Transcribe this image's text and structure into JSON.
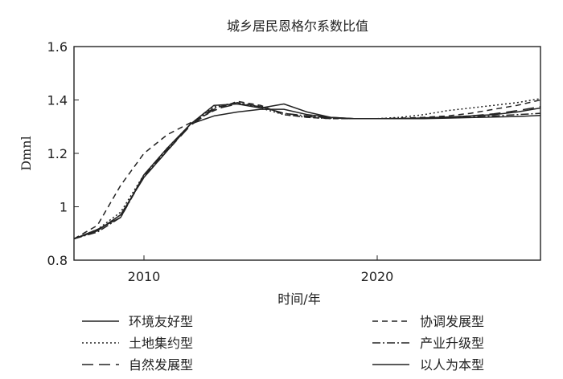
{
  "chart_data": {
    "type": "line",
    "title": "城乡居民恩格尔系数比值",
    "xlabel": "时间/年",
    "ylabel": "Dmnl",
    "xlim": [
      2007,
      2027
    ],
    "ylim": [
      0.8,
      1.6
    ],
    "xticks": [
      {
        "value": 2010,
        "label": "2010"
      },
      {
        "value": 2020,
        "label": "2020"
      }
    ],
    "yticks": [
      {
        "value": 0.8,
        "label": "0.8"
      },
      {
        "value": 1.0,
        "label": "1"
      },
      {
        "value": 1.2,
        "label": "1.2"
      },
      {
        "value": 1.4,
        "label": "1.4"
      },
      {
        "value": 1.6,
        "label": "1.6"
      }
    ],
    "grid": false,
    "legend_position": "bottom",
    "series": [
      {
        "name": "环境友好型",
        "dash": "solid",
        "x": [
          2007,
          2008,
          2009,
          2010,
          2011,
          2012,
          2013,
          2014,
          2015,
          2016,
          2017,
          2018,
          2019,
          2020,
          2021,
          2022,
          2023,
          2024,
          2025,
          2026,
          2027
        ],
        "y": [
          0.88,
          0.91,
          0.97,
          1.11,
          1.21,
          1.31,
          1.34,
          1.355,
          1.365,
          1.365,
          1.345,
          1.335,
          1.33,
          1.33,
          1.33,
          1.333,
          1.336,
          1.34,
          1.345,
          1.355,
          1.37
        ]
      },
      {
        "name": "协调发展型",
        "dash": "dash",
        "x": [
          2007,
          2008,
          2009,
          2010,
          2011,
          2012,
          2013,
          2014,
          2015,
          2016,
          2017,
          2018,
          2019,
          2020,
          2021,
          2022,
          2023,
          2024,
          2025,
          2026,
          2027
        ],
        "y": [
          0.88,
          0.93,
          1.08,
          1.2,
          1.27,
          1.315,
          1.36,
          1.395,
          1.38,
          1.345,
          1.335,
          1.33,
          1.33,
          1.33,
          1.332,
          1.335,
          1.34,
          1.35,
          1.365,
          1.38,
          1.4
        ]
      },
      {
        "name": "土地集约型",
        "dash": "dot",
        "x": [
          2007,
          2008,
          2009,
          2010,
          2011,
          2012,
          2013,
          2014,
          2015,
          2016,
          2017,
          2018,
          2019,
          2020,
          2021,
          2022,
          2023,
          2024,
          2025,
          2026,
          2027
        ],
        "y": [
          0.88,
          0.915,
          0.98,
          1.12,
          1.22,
          1.31,
          1.375,
          1.39,
          1.37,
          1.345,
          1.335,
          1.33,
          1.33,
          1.33,
          1.335,
          1.345,
          1.36,
          1.37,
          1.38,
          1.39,
          1.405
        ]
      },
      {
        "name": "产业升级型",
        "dash": "dashdot",
        "x": [
          2007,
          2008,
          2009,
          2010,
          2011,
          2012,
          2013,
          2014,
          2015,
          2016,
          2017,
          2018,
          2019,
          2020,
          2021,
          2022,
          2023,
          2024,
          2025,
          2026,
          2027
        ],
        "y": [
          0.88,
          0.905,
          0.96,
          1.115,
          1.215,
          1.31,
          1.37,
          1.39,
          1.375,
          1.35,
          1.34,
          1.333,
          1.33,
          1.33,
          1.33,
          1.332,
          1.334,
          1.336,
          1.34,
          1.345,
          1.35
        ]
      },
      {
        "name": "自然发展型",
        "dash": "longdash",
        "x": [
          2007,
          2008,
          2009,
          2010,
          2011,
          2012,
          2013,
          2014,
          2015,
          2016,
          2017,
          2018,
          2019,
          2020,
          2021,
          2022,
          2023,
          2024,
          2025,
          2026,
          2027
        ],
        "y": [
          0.88,
          0.91,
          0.97,
          1.11,
          1.21,
          1.305,
          1.365,
          1.385,
          1.375,
          1.35,
          1.338,
          1.332,
          1.33,
          1.33,
          1.33,
          1.332,
          1.335,
          1.34,
          1.348,
          1.36,
          1.375
        ]
      },
      {
        "name": "以人为本型",
        "dash": "solid",
        "x": [
          2007,
          2008,
          2009,
          2010,
          2011,
          2012,
          2013,
          2014,
          2015,
          2016,
          2017,
          2018,
          2019,
          2020,
          2021,
          2022,
          2023,
          2024,
          2025,
          2026,
          2027
        ],
        "y": [
          0.88,
          0.915,
          0.96,
          1.12,
          1.22,
          1.31,
          1.38,
          1.385,
          1.37,
          1.385,
          1.355,
          1.335,
          1.33,
          1.33,
          1.33,
          1.33,
          1.332,
          1.334,
          1.336,
          1.338,
          1.342
        ]
      }
    ],
    "legend_columns": [
      [
        "环境友好型",
        "土地集约型",
        "自然发展型"
      ],
      [
        "协调发展型",
        "产业升级型",
        "以人为本型"
      ]
    ]
  }
}
